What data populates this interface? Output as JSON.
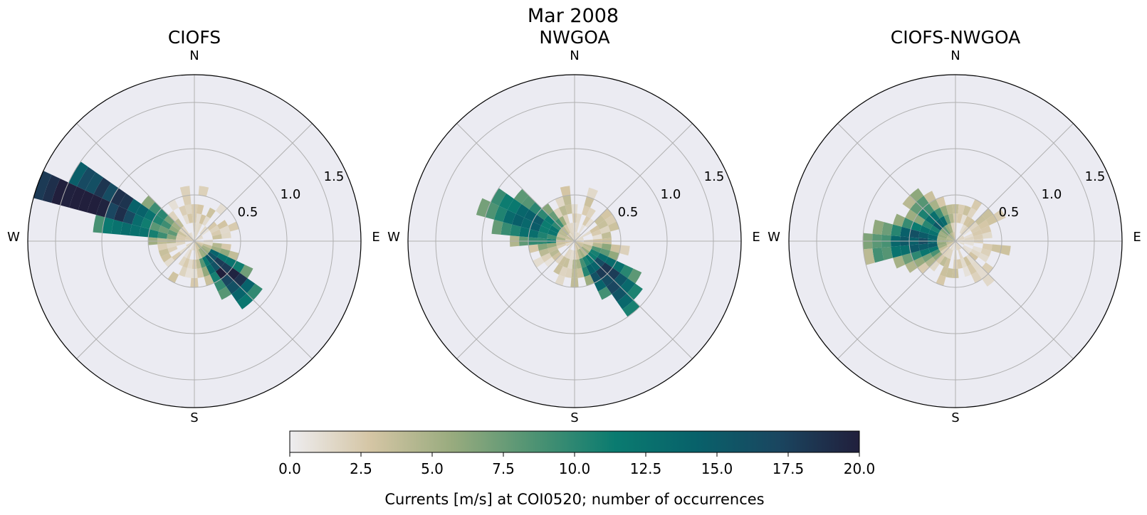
{
  "figure": {
    "title": "Mar 2008"
  },
  "colorbar": {
    "label": "Currents [m/s] at COI0520; number of occurrences",
    "min": 0,
    "max": 20,
    "ticks": [
      "0.0",
      "2.5",
      "5.0",
      "7.5",
      "10.0",
      "12.5",
      "15.0",
      "17.5",
      "20.0"
    ],
    "colormap": "rain",
    "stops": [
      "#eeedf0",
      "#d4c5a4",
      "#98ab7e",
      "#4e9373",
      "#0a7b70",
      "#08616a",
      "#1a4660",
      "#211f3c"
    ]
  },
  "chart_data": [
    {
      "type": "polar-histogram",
      "title": "CIOFS",
      "directions": [
        "N",
        "E",
        "S",
        "W"
      ],
      "rlim": [
        0,
        1.8
      ],
      "rticks": [
        "0.5",
        "1.0",
        "1.5"
      ],
      "sector_width_deg": 10,
      "speed_bin_width": 0.1,
      "grid": true,
      "dominant_directions": [
        "WNW",
        "SE"
      ],
      "max_count": 20
    },
    {
      "type": "polar-histogram",
      "title": "NWGOA",
      "directions": [
        "N",
        "E",
        "S",
        "W"
      ],
      "rlim": [
        0,
        1.8
      ],
      "rticks": [
        "0.5",
        "1.0",
        "1.5"
      ],
      "sector_width_deg": 10,
      "speed_bin_width": 0.1,
      "grid": true,
      "dominant_directions": [
        "WNW",
        "SE"
      ],
      "max_count": 17
    },
    {
      "type": "polar-histogram",
      "title": "CIOFS-NWGOA",
      "directions": [
        "N",
        "E",
        "S",
        "W"
      ],
      "rlim": [
        0,
        1.8
      ],
      "rticks": [
        "0.5",
        "1.0",
        "1.5"
      ],
      "sector_width_deg": 10,
      "speed_bin_width": 0.1,
      "grid": true,
      "dominant_directions": [
        "W",
        "NW"
      ],
      "max_count": 16
    }
  ]
}
